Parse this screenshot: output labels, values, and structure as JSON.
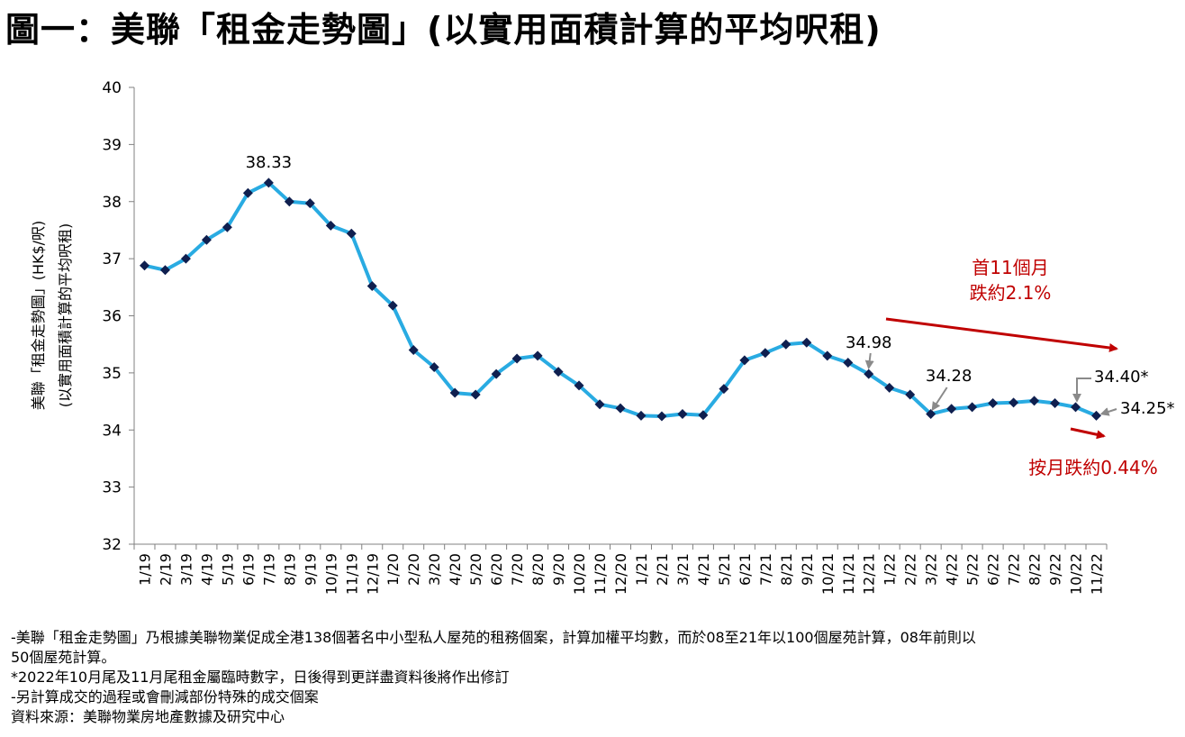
{
  "title": "圖一：美聯「租金走勢圖」(以實用面積計算的平均呎租)",
  "chart_data": {
    "type": "line",
    "ylabel_line1": "美聯「租金走勢圖」(HK$/呎)",
    "ylabel_line2": "(以實用面積計算的平均呎租)",
    "ylim": [
      32,
      40
    ],
    "yticks": [
      "32",
      "33",
      "34",
      "35",
      "36",
      "37",
      "38",
      "39",
      "40"
    ],
    "grid": false,
    "categories": [
      "1/19",
      "2/19",
      "3/19",
      "4/19",
      "5/19",
      "6/19",
      "7/19",
      "8/19",
      "9/19",
      "10/19",
      "11/19",
      "12/19",
      "1/20",
      "2/20",
      "3/20",
      "4/20",
      "5/20",
      "6/20",
      "7/20",
      "8/20",
      "9/20",
      "10/20",
      "11/20",
      "12/20",
      "1/21",
      "2/21",
      "3/21",
      "4/21",
      "5/21",
      "6/21",
      "7/21",
      "8/21",
      "9/21",
      "10/21",
      "11/21",
      "12/21",
      "1/22",
      "2/22",
      "3/22",
      "4/22",
      "5/22",
      "6/22",
      "7/22",
      "8/22",
      "9/22",
      "10/22",
      "11/22"
    ],
    "values": [
      36.88,
      36.8,
      37.0,
      37.33,
      37.55,
      38.15,
      38.33,
      38.0,
      37.97,
      37.58,
      37.44,
      36.52,
      36.18,
      35.4,
      35.1,
      34.65,
      34.62,
      34.98,
      35.25,
      35.3,
      35.02,
      34.78,
      34.45,
      34.38,
      34.25,
      34.24,
      34.28,
      34.26,
      34.72,
      35.22,
      35.35,
      35.5,
      35.53,
      35.3,
      35.18,
      34.98,
      34.74,
      34.62,
      34.28,
      34.37,
      34.4,
      34.47,
      34.48,
      34.51,
      34.47,
      34.4,
      34.25
    ],
    "line_color": "#29abe2",
    "marker_color": "#0f1f4f",
    "data_labels": [
      {
        "index": 6,
        "text": "38.33"
      },
      {
        "index": 35,
        "text": "34.98"
      },
      {
        "index": 38,
        "text": "34.28"
      },
      {
        "index": 45,
        "text": "34.40*"
      },
      {
        "index": 46,
        "text": "34.25*"
      }
    ],
    "annotations": {
      "trend_label_1": "首11個月",
      "trend_label_2": "跌約2.1%",
      "monthly_label": "按月跌約0.44%",
      "annotation_color": "#c00000"
    }
  },
  "notes": [
    "-美聯「租金走勢圖」乃根據美聯物業促成全港138個著名中小型私人屋苑的租務個案，計算加權平均數，而於08至21年以100個屋苑計算，08年前則以",
    "50個屋苑計算。",
    "*2022年10月尾及11月尾租金屬臨時數字，日後得到更詳盡資料後將作出修訂",
    "-另計算成交的過程或會刪減部份特殊的成交個案",
    "資料來源：美聯物業房地產數據及研究中心"
  ]
}
